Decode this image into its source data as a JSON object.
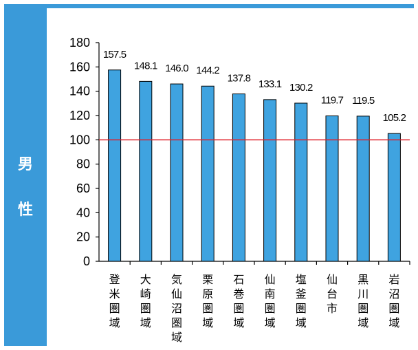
{
  "side_label": {
    "line1": "男",
    "line2": "性"
  },
  "colors": {
    "band": "#3a9ad9",
    "bar_fill": "#3fa3e0",
    "bar_stroke": "#000000",
    "reference_line": "#e0202a"
  },
  "chart_data": {
    "type": "bar",
    "categories": [
      "登米圏域",
      "大崎圏域",
      "気仙沼圏域",
      "栗原圏域",
      "石巻圏域",
      "仙南圏域",
      "塩釜圏域",
      "仙台市",
      "黒川圏域",
      "岩沼圏域"
    ],
    "values": [
      157.5,
      148.1,
      146.0,
      144.2,
      137.8,
      133.1,
      130.2,
      119.7,
      119.5,
      105.2
    ],
    "data_labels": [
      "157.5",
      "148.1",
      "146.0",
      "144.2",
      "137.8",
      "133.1",
      "130.2",
      "119.7",
      "119.5",
      "105.2"
    ],
    "ylim": [
      0,
      180
    ],
    "yticks": [
      0,
      20,
      40,
      60,
      80,
      100,
      120,
      140,
      160,
      180
    ],
    "reference_line": 100,
    "title": "",
    "xlabel": "",
    "ylabel": "",
    "grid": false,
    "legend": "none"
  }
}
